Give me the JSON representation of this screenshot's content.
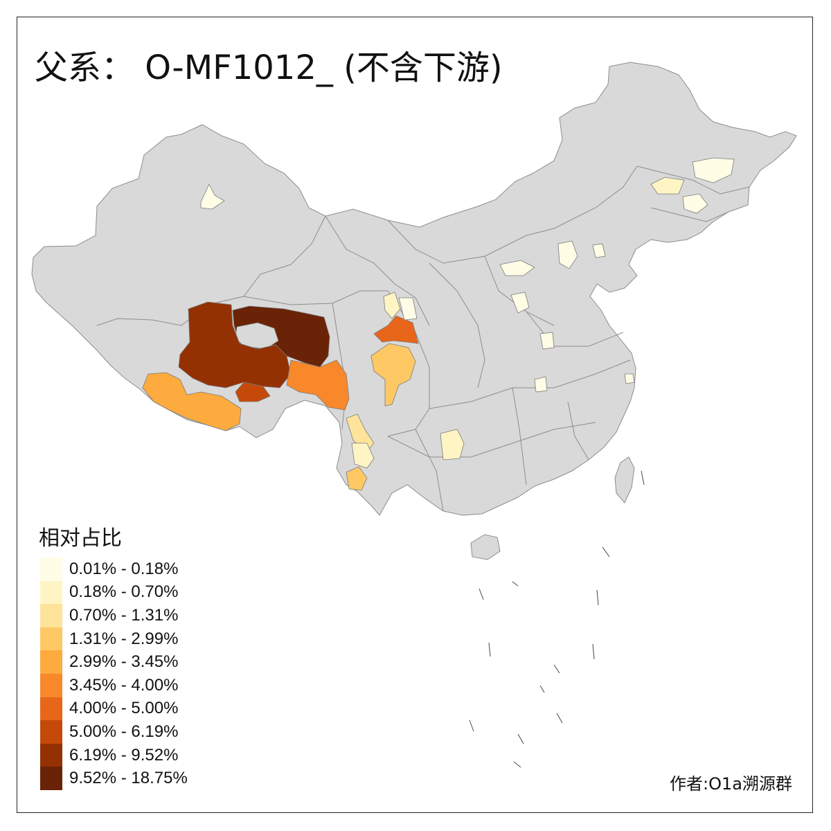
{
  "title": "父系： O-MF1012_ (不含下游)",
  "legend": {
    "title": "相对占比",
    "classes": [
      {
        "label": "0.01% - 0.18%",
        "color": "#fffde6"
      },
      {
        "label": "0.18% - 0.70%",
        "color": "#fff5c4"
      },
      {
        "label": "0.70% - 1.31%",
        "color": "#fee49a"
      },
      {
        "label": "1.31% - 2.99%",
        "color": "#fec965"
      },
      {
        "label": "2.99% - 3.45%",
        "color": "#fdab3e"
      },
      {
        "label": "3.45% - 4.00%",
        "color": "#f8882a"
      },
      {
        "label": "4.00% - 5.00%",
        "color": "#e7661a"
      },
      {
        "label": "5.00% - 6.19%",
        "color": "#c54a0a"
      },
      {
        "label": "6.19% - 9.52%",
        "color": "#943103"
      },
      {
        "label": "9.52% - 18.75%",
        "color": "#6a2307"
      }
    ]
  },
  "author": "作者:O1a溯源群",
  "colors": {
    "base_land": "#d9d9d9",
    "border": "#8c8c8c",
    "frame": "#222222"
  }
}
